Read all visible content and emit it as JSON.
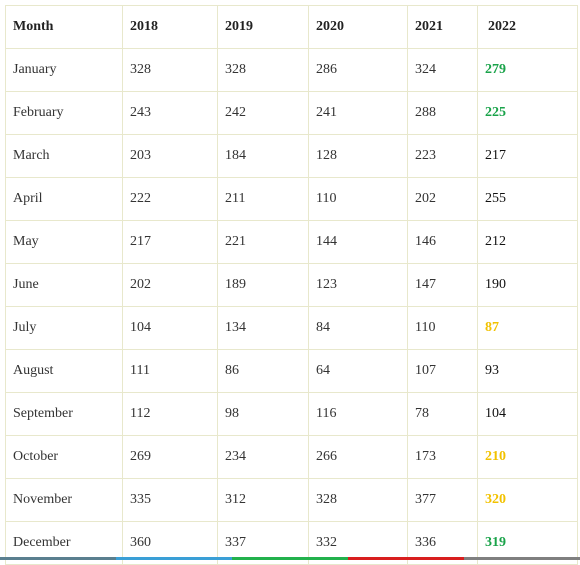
{
  "table": {
    "headers": [
      "Month",
      "2018",
      "2019",
      "2020",
      "2021",
      "2022"
    ],
    "rows": [
      {
        "month": "January",
        "values": [
          "328",
          "328",
          "286",
          "324"
        ],
        "y2022": "279",
        "highlight": "#1aa34a"
      },
      {
        "month": "February",
        "values": [
          "243",
          "242",
          "241",
          "288"
        ],
        "y2022": "225",
        "highlight": "#1aa34a"
      },
      {
        "month": "March",
        "values": [
          "203",
          "184",
          "128",
          "223"
        ],
        "y2022": "217",
        "highlight": null
      },
      {
        "month": "April",
        "values": [
          "222",
          "211",
          "110",
          "202"
        ],
        "y2022": "255",
        "highlight": null
      },
      {
        "month": "May",
        "values": [
          "217",
          "221",
          "144",
          "146"
        ],
        "y2022": "212",
        "highlight": null
      },
      {
        "month": "June",
        "values": [
          "202",
          "189",
          "123",
          "147"
        ],
        "y2022": "190",
        "highlight": null
      },
      {
        "month": "July",
        "values": [
          "104",
          "134",
          "84",
          "110"
        ],
        "y2022": "87",
        "highlight": "#f2c200"
      },
      {
        "month": "August",
        "values": [
          "111",
          "86",
          "64",
          "107"
        ],
        "y2022": "93",
        "highlight": null
      },
      {
        "month": "September",
        "values": [
          "112",
          "98",
          "116",
          "78"
        ],
        "y2022": "104",
        "highlight": null
      },
      {
        "month": "October",
        "values": [
          "269",
          "234",
          "266",
          "173"
        ],
        "y2022": "210",
        "highlight": "#f2c200"
      },
      {
        "month": "November",
        "values": [
          "335",
          "312",
          "328",
          "377"
        ],
        "y2022": "320",
        "highlight": "#f2c200"
      },
      {
        "month": "December",
        "values": [
          "360",
          "337",
          "332",
          "336"
        ],
        "y2022": "319",
        "highlight": "#1aa34a"
      }
    ]
  },
  "colors": {
    "border": "#e8e8cc",
    "bottom_bar": [
      "#5a7f8f",
      "#3a9fd6",
      "#22b14c",
      "#d81e1e",
      "#7f7f7f"
    ]
  }
}
